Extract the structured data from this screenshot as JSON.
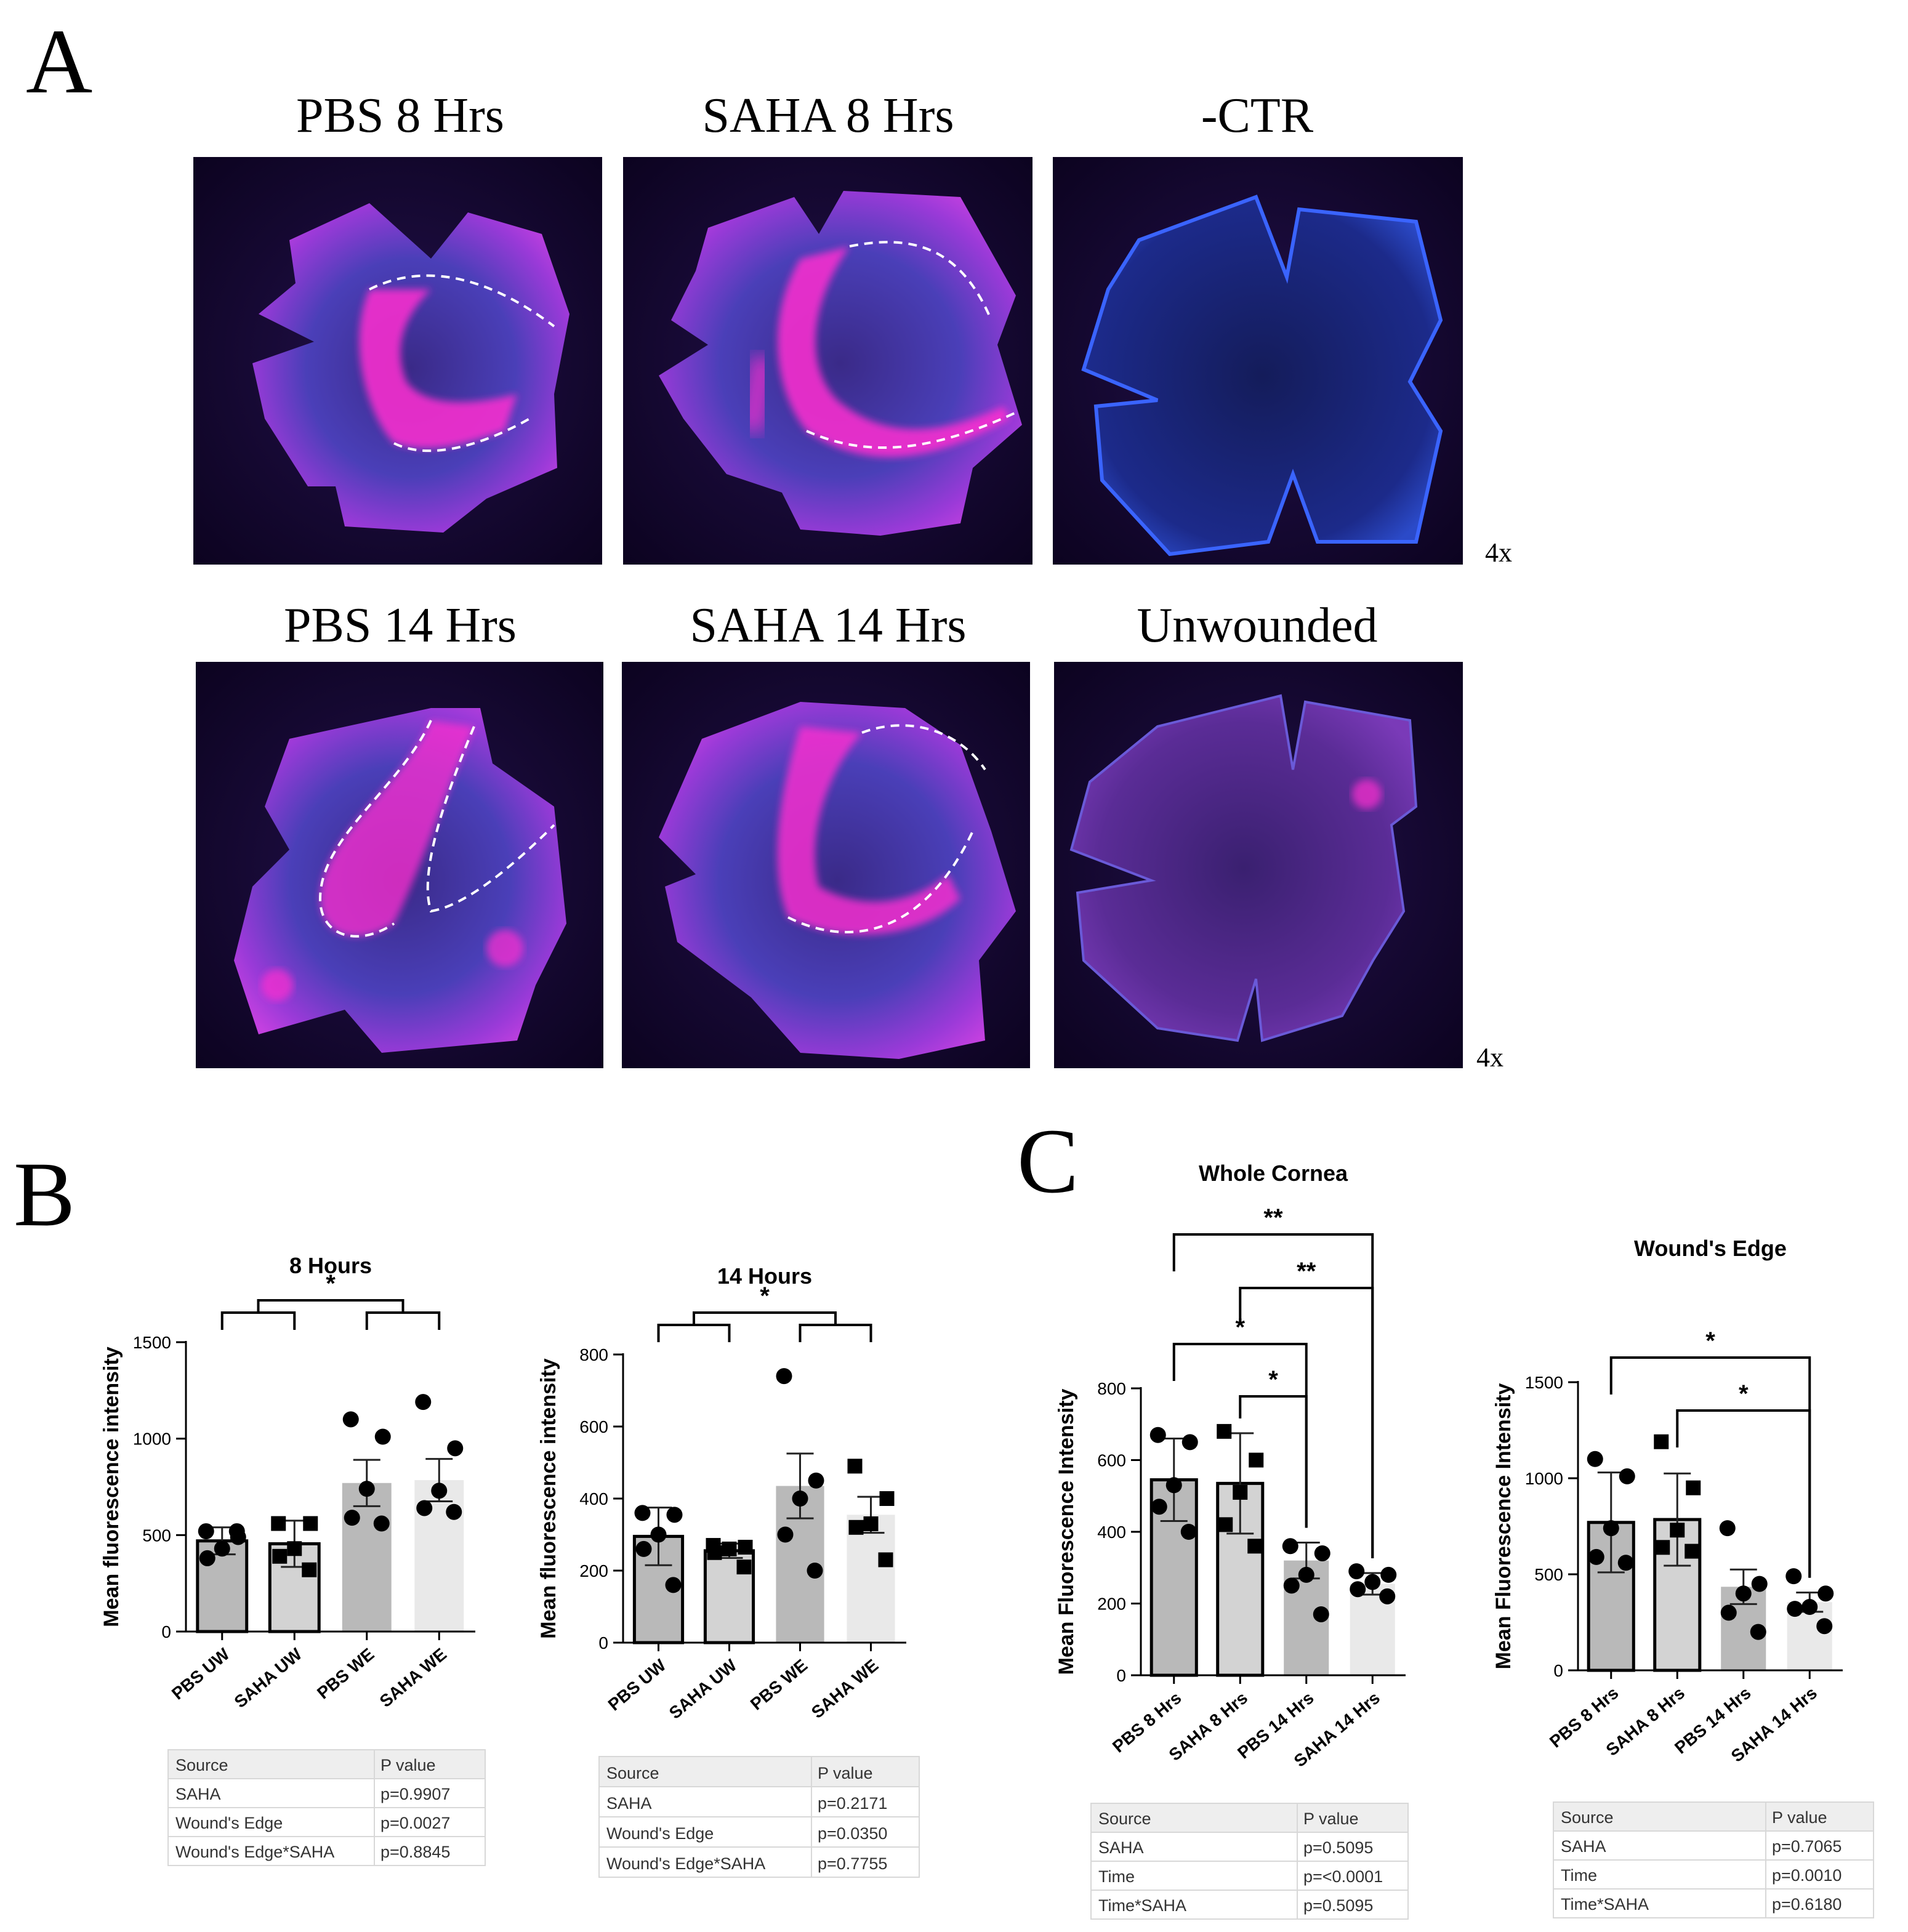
{
  "panel_labels": {
    "a": "A",
    "b": "B",
    "c": "C"
  },
  "micrographs": {
    "row1": [
      {
        "title": "PBS 8 Hrs",
        "type": "wound"
      },
      {
        "title": "SAHA 8 Hrs",
        "type": "wound"
      },
      {
        "title": "-CTR",
        "type": "control"
      }
    ],
    "row2": [
      {
        "title": "PBS 14 Hrs",
        "type": "wound"
      },
      {
        "title": "SAHA 14 Hrs",
        "type": "wound"
      },
      {
        "title": "Unwounded",
        "type": "unwounded"
      }
    ],
    "magnification": "4x"
  },
  "colors": {
    "bar_dark": "#b9b9b9",
    "bar_mid": "#d3d3d3",
    "bar_light": "#e9e9e9",
    "table_header": "#eeeeee",
    "tissue_blue": "#2b3ca8",
    "tissue_magenta": "#ff2fd0",
    "image_bg": "#14062a"
  },
  "chart_data": [
    {
      "id": "b8",
      "type": "bar",
      "title": "8 Hours",
      "ylabel": "Mean fluorescence intensity",
      "ylim": [
        0,
        1500
      ],
      "yticks": [
        "0",
        "500",
        "1000",
        "1500"
      ],
      "categories": [
        "PBS UW",
        "SAHA UW",
        "PBS WE",
        "SAHA WE"
      ],
      "values": [
        470,
        455,
        770,
        785
      ],
      "errors": [
        70,
        120,
        120,
        110
      ],
      "points": [
        [
          520,
          490,
          430,
          380,
          520
        ],
        [
          560,
          560,
          430,
          390,
          320
        ],
        [
          1100,
          1010,
          740,
          590,
          560
        ],
        [
          1190,
          950,
          730,
          640,
          620
        ]
      ],
      "markers": [
        "circle",
        "square",
        "circle",
        "circle"
      ],
      "bracket_label": "*",
      "stats_table": {
        "header": [
          "Source",
          "P value"
        ],
        "rows": [
          [
            "SAHA",
            "p=0.9907"
          ],
          [
            "Wound's Edge",
            "p=0.0027"
          ],
          [
            "Wound's Edge*SAHA",
            "p=0.8845"
          ]
        ]
      }
    },
    {
      "id": "b14",
      "type": "bar",
      "title": "14 Hours",
      "ylabel": "Mean fluorescence intensity",
      "ylim": [
        0,
        800
      ],
      "yticks": [
        "0",
        "200",
        "400",
        "600",
        "800"
      ],
      "categories": [
        "PBS UW",
        "SAHA UW",
        "PBS WE",
        "SAHA WE"
      ],
      "values": [
        295,
        255,
        435,
        355
      ],
      "errors": [
        80,
        20,
        90,
        50
      ],
      "points": [
        [
          360,
          355,
          300,
          260,
          160
        ],
        [
          270,
          265,
          260,
          250,
          210
        ],
        [
          740,
          450,
          400,
          300,
          200
        ],
        [
          490,
          400,
          330,
          320,
          230
        ]
      ],
      "markers": [
        "circle",
        "square",
        "circle",
        "square"
      ],
      "bracket_label": "*",
      "stats_table": {
        "header": [
          "Source",
          "P value"
        ],
        "rows": [
          [
            "SAHA",
            "p=0.2171"
          ],
          [
            "Wound's Edge",
            "p=0.0350"
          ],
          [
            "Wound's Edge*SAHA",
            "p=0.7755"
          ]
        ]
      }
    },
    {
      "id": "cwc",
      "type": "bar",
      "title": "Whole Cornea",
      "ylabel": "Mean Fluorescence Intensity",
      "ylim": [
        0,
        800
      ],
      "yticks": [
        "0",
        "200",
        "400",
        "600",
        "800"
      ],
      "categories": [
        "PBS 8 Hrs",
        "SAHA 8 Hrs",
        "PBS 14 Hrs",
        "SAHA 14 Hrs"
      ],
      "values": [
        545,
        535,
        320,
        255
      ],
      "errors": [
        115,
        140,
        50,
        30
      ],
      "points": [
        [
          670,
          650,
          530,
          470,
          400
        ],
        [
          680,
          600,
          510,
          420,
          360
        ],
        [
          360,
          340,
          280,
          250,
          170
        ],
        [
          290,
          280,
          260,
          240,
          220
        ]
      ],
      "markers": [
        "circle",
        "square",
        "circle",
        "circle"
      ],
      "brackets": [
        {
          "from": 0,
          "to": 3,
          "label": "**"
        },
        {
          "from": 1,
          "to": 3,
          "label": "**"
        },
        {
          "from": 0,
          "to": 2,
          "label": "*"
        },
        {
          "from": 1,
          "to": 2,
          "label": "*"
        }
      ],
      "stats_table": {
        "header": [
          "Source",
          "P value"
        ],
        "rows": [
          [
            "SAHA",
            "p=0.5095"
          ],
          [
            "Time",
            "p=<0.0001"
          ],
          [
            "Time*SAHA",
            "p=0.5095"
          ]
        ]
      }
    },
    {
      "id": "cwe",
      "type": "bar",
      "title": "Wound's Edge",
      "ylabel": "Mean Fluorescence Intensity",
      "ylim": [
        0,
        1500
      ],
      "yticks": [
        "0",
        "500",
        "1000",
        "1500"
      ],
      "categories": [
        "PBS 8 Hrs",
        "SAHA 8 Hrs",
        "PBS 14 Hrs",
        "SAHA 14 Hrs"
      ],
      "values": [
        770,
        785,
        435,
        355
      ],
      "errors": [
        260,
        240,
        90,
        50
      ],
      "points": [
        [
          1100,
          1010,
          740,
          590,
          560
        ],
        [
          1190,
          950,
          730,
          640,
          620
        ],
        [
          740,
          450,
          400,
          300,
          200
        ],
        [
          490,
          400,
          330,
          320,
          230
        ]
      ],
      "markers": [
        "circle",
        "square",
        "circle",
        "circle"
      ],
      "brackets": [
        {
          "from": 0,
          "to": 3,
          "label": "*"
        },
        {
          "from": 1,
          "to": 3,
          "label": "*"
        }
      ],
      "stats_table": {
        "header": [
          "Source",
          "P value"
        ],
        "rows": [
          [
            "SAHA",
            "p=0.7065"
          ],
          [
            "Time",
            "p=0.0010"
          ],
          [
            "Time*SAHA",
            "p=0.6180"
          ]
        ]
      }
    }
  ]
}
